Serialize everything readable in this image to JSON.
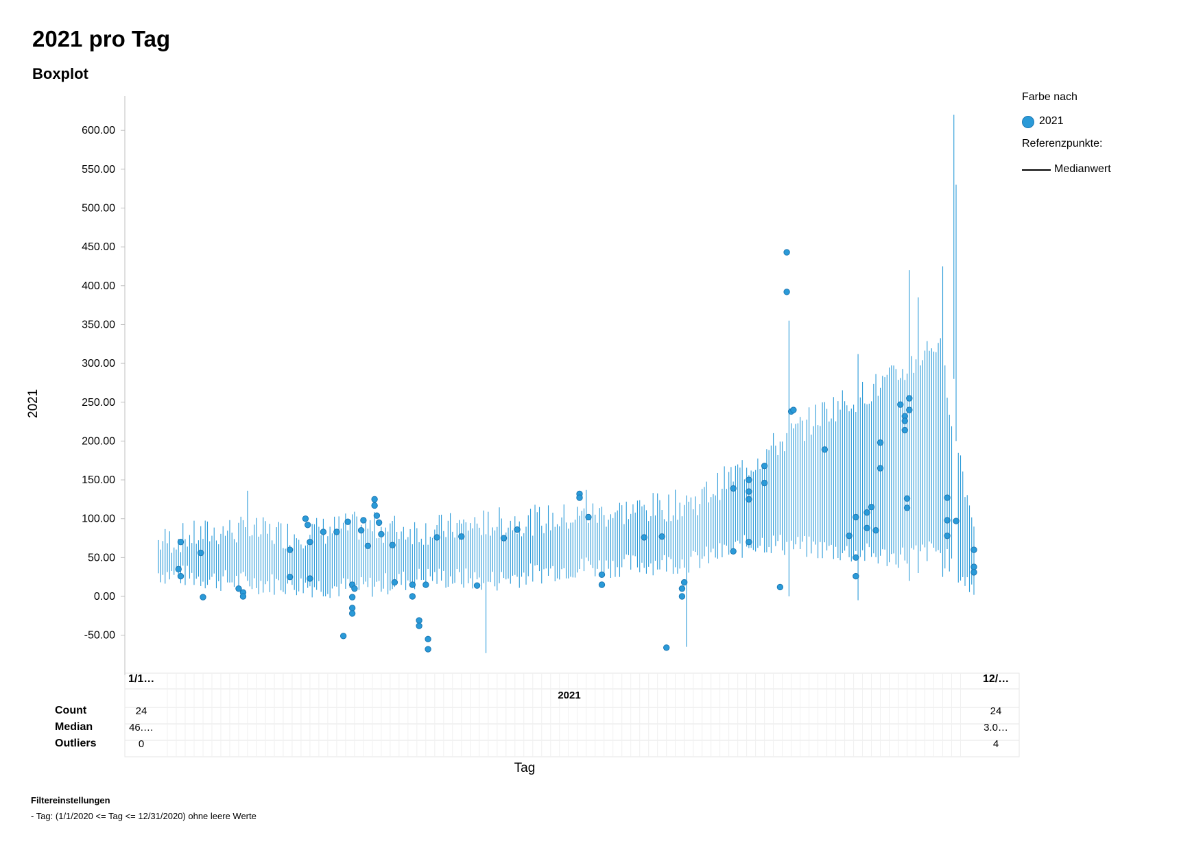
{
  "title": "2021 pro Tag",
  "subtitle": "Boxplot",
  "legend": {
    "color_header": "Farbe nach",
    "series_label": "2021",
    "ref_header": "Referenzpunkte:",
    "ref_label": "Medianwert"
  },
  "colors": {
    "box": "#2a9ad8",
    "outlier": "#1c78b4",
    "axis": "#bfbfbf",
    "grid": "#e6e6e6"
  },
  "x_axis": {
    "title": "Tag",
    "first_tick": "1/1…",
    "last_tick": "12/…",
    "group_label": "2021"
  },
  "y_axis": {
    "title": "2021"
  },
  "stats": {
    "labels": [
      "Count",
      "Median",
      "Outliers"
    ],
    "first": [
      "24",
      "46.…",
      "0"
    ],
    "last": [
      "24",
      "3.0…",
      "4"
    ]
  },
  "filter": {
    "title": "Filtereinstellungen",
    "item": "-  Tag: (1/1/2020 <= Tag <= 12/31/2020) ohne leere Werte"
  },
  "chart_data": {
    "type": "boxplot",
    "title": "2021 pro Tag",
    "subtitle": "Boxplot",
    "xlabel": "Tag",
    "ylabel": "2021",
    "ylim": [
      -90,
      640
    ],
    "yticks": [
      -50,
      0,
      50,
      100,
      150,
      200,
      250,
      300,
      350,
      400,
      450,
      500,
      550,
      600
    ],
    "ytick_labels": [
      "-50.00",
      "0.00",
      "50.00",
      "100.00",
      "150.00",
      "200.00",
      "250.00",
      "300.00",
      "350.00",
      "400.00",
      "450.00",
      "500.00",
      "550.00",
      "600.00"
    ],
    "x_range": [
      "1/1",
      "12/31"
    ],
    "days": 366,
    "range_knots": [
      {
        "day": 0,
        "low": 30,
        "high": 70
      },
      {
        "day": 30,
        "low": 20,
        "high": 85
      },
      {
        "day": 60,
        "low": 15,
        "high": 80
      },
      {
        "day": 90,
        "low": 10,
        "high": 90
      },
      {
        "day": 120,
        "low": 25,
        "high": 85
      },
      {
        "day": 150,
        "low": 20,
        "high": 95
      },
      {
        "day": 180,
        "low": 35,
        "high": 100
      },
      {
        "day": 210,
        "low": 40,
        "high": 110
      },
      {
        "day": 240,
        "low": 45,
        "high": 120
      },
      {
        "day": 270,
        "low": 70,
        "high": 180
      },
      {
        "day": 300,
        "low": 60,
        "high": 240
      },
      {
        "day": 330,
        "low": 50,
        "high": 280
      },
      {
        "day": 350,
        "low": 60,
        "high": 330
      },
      {
        "day": 365,
        "low": 10,
        "high": 100
      }
    ],
    "spikes": [
      {
        "day": 40,
        "low": 20,
        "high": 136
      },
      {
        "day": 147,
        "low": -73,
        "high": 80
      },
      {
        "day": 192,
        "low": 50,
        "high": 137
      },
      {
        "day": 237,
        "low": -65,
        "high": 130
      },
      {
        "day": 283,
        "low": 0,
        "high": 355
      },
      {
        "day": 314,
        "low": -5,
        "high": 312
      },
      {
        "day": 337,
        "low": 20,
        "high": 420
      },
      {
        "day": 341,
        "low": 30,
        "high": 385
      },
      {
        "day": 357,
        "low": 280,
        "high": 620
      },
      {
        "day": 358,
        "low": 200,
        "high": 530
      },
      {
        "day": 352,
        "low": 25,
        "high": 425
      }
    ],
    "outliers": [
      {
        "day": 10,
        "value": 70
      },
      {
        "day": 9,
        "value": 35
      },
      {
        "day": 10,
        "value": 26
      },
      {
        "day": 19,
        "value": 56
      },
      {
        "day": 20,
        "value": -1
      },
      {
        "day": 36,
        "value": 10
      },
      {
        "day": 38,
        "value": 5
      },
      {
        "day": 38,
        "value": 0
      },
      {
        "day": 59,
        "value": 60
      },
      {
        "day": 59,
        "value": 25
      },
      {
        "day": 66,
        "value": 100
      },
      {
        "day": 67,
        "value": 92
      },
      {
        "day": 68,
        "value": 70
      },
      {
        "day": 68,
        "value": 23
      },
      {
        "day": 74,
        "value": 83
      },
      {
        "day": 80,
        "value": 83
      },
      {
        "day": 83,
        "value": -51
      },
      {
        "day": 85,
        "value": 96
      },
      {
        "day": 87,
        "value": 15
      },
      {
        "day": 87,
        "value": -1
      },
      {
        "day": 87,
        "value": -15
      },
      {
        "day": 87,
        "value": -22
      },
      {
        "day": 88,
        "value": 10
      },
      {
        "day": 91,
        "value": 85
      },
      {
        "day": 92,
        "value": 98
      },
      {
        "day": 94,
        "value": 65
      },
      {
        "day": 97,
        "value": 125
      },
      {
        "day": 97,
        "value": 117
      },
      {
        "day": 98,
        "value": 104
      },
      {
        "day": 99,
        "value": 95
      },
      {
        "day": 100,
        "value": 80
      },
      {
        "day": 105,
        "value": 66
      },
      {
        "day": 106,
        "value": 18
      },
      {
        "day": 114,
        "value": 15
      },
      {
        "day": 114,
        "value": 0
      },
      {
        "day": 117,
        "value": -31
      },
      {
        "day": 117,
        "value": -38
      },
      {
        "day": 120,
        "value": 15
      },
      {
        "day": 121,
        "value": -55
      },
      {
        "day": 121,
        "value": -68
      },
      {
        "day": 125,
        "value": 76
      },
      {
        "day": 136,
        "value": 77
      },
      {
        "day": 143,
        "value": 14
      },
      {
        "day": 155,
        "value": 75
      },
      {
        "day": 161,
        "value": 86
      },
      {
        "day": 189,
        "value": 132
      },
      {
        "day": 189,
        "value": 127
      },
      {
        "day": 193,
        "value": 102
      },
      {
        "day": 199,
        "value": 28
      },
      {
        "day": 199,
        "value": 15
      },
      {
        "day": 218,
        "value": 76
      },
      {
        "day": 226,
        "value": 77
      },
      {
        "day": 228,
        "value": -66
      },
      {
        "day": 235,
        "value": 10
      },
      {
        "day": 235,
        "value": 0
      },
      {
        "day": 236,
        "value": 18
      },
      {
        "day": 258,
        "value": 139
      },
      {
        "day": 258,
        "value": 58
      },
      {
        "day": 265,
        "value": 150
      },
      {
        "day": 265,
        "value": 135
      },
      {
        "day": 265,
        "value": 125
      },
      {
        "day": 265,
        "value": 70
      },
      {
        "day": 272,
        "value": 168
      },
      {
        "day": 272,
        "value": 146
      },
      {
        "day": 279,
        "value": 12
      },
      {
        "day": 282,
        "value": 443
      },
      {
        "day": 282,
        "value": 392
      },
      {
        "day": 284,
        "value": 238
      },
      {
        "day": 285,
        "value": 240
      },
      {
        "day": 299,
        "value": 189
      },
      {
        "day": 310,
        "value": 78
      },
      {
        "day": 313,
        "value": 102
      },
      {
        "day": 313,
        "value": 50
      },
      {
        "day": 313,
        "value": 26
      },
      {
        "day": 318,
        "value": 108
      },
      {
        "day": 318,
        "value": 88
      },
      {
        "day": 320,
        "value": 115
      },
      {
        "day": 322,
        "value": 85
      },
      {
        "day": 324,
        "value": 198
      },
      {
        "day": 324,
        "value": 165
      },
      {
        "day": 333,
        "value": 247
      },
      {
        "day": 335,
        "value": 232
      },
      {
        "day": 335,
        "value": 226
      },
      {
        "day": 335,
        "value": 214
      },
      {
        "day": 336,
        "value": 126
      },
      {
        "day": 336,
        "value": 114
      },
      {
        "day": 337,
        "value": 255
      },
      {
        "day": 337,
        "value": 240
      },
      {
        "day": 354,
        "value": 127
      },
      {
        "day": 354,
        "value": 98
      },
      {
        "day": 354,
        "value": 78
      },
      {
        "day": 358,
        "value": 97
      },
      {
        "day": 366,
        "value": 60
      },
      {
        "day": 366,
        "value": 38
      },
      {
        "day": 366,
        "value": 31
      }
    ]
  }
}
